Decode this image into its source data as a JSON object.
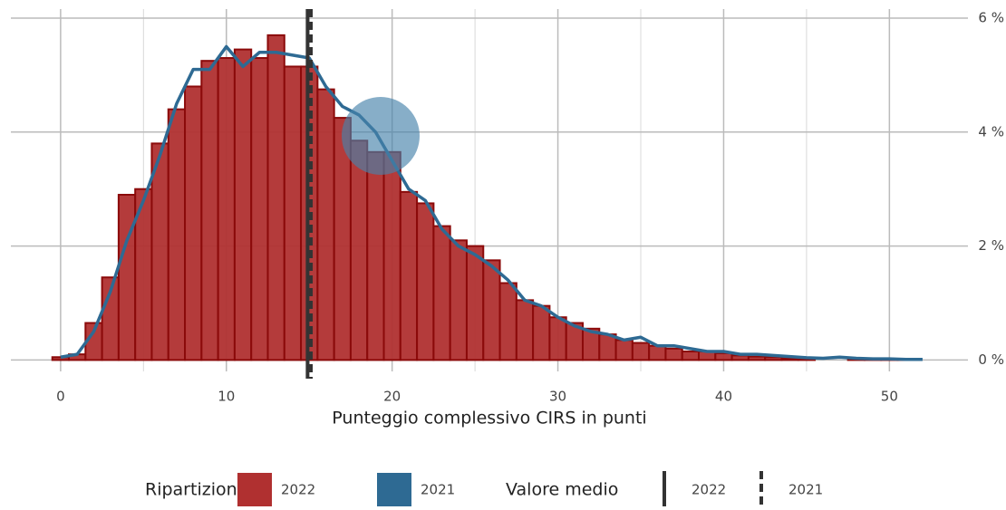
{
  "chart_data": {
    "type": "histogram",
    "xlabel": "Punteggio complessivo CIRS in punti",
    "bins": [
      -0.5,
      0.5,
      1.5,
      2.5,
      3.5,
      4.5,
      5.5,
      6.5,
      7.5,
      8.5,
      9.5,
      10.5,
      11.5,
      12.5,
      13.5,
      14.5,
      15.5,
      16.5,
      17.5,
      18.5,
      19.5,
      20.5,
      21.5,
      22.5,
      23.5,
      24.5,
      25.5,
      26.5,
      27.5,
      28.5,
      29.5,
      30.5,
      31.5,
      32.5,
      33.5,
      34.5,
      35.5,
      36.5,
      37.5,
      38.5,
      39.5,
      40.5,
      41.5,
      42.5,
      43.5,
      44.5,
      45.5,
      46.5,
      47.5,
      48.5,
      49.5,
      50.5,
      51.5,
      52.5
    ],
    "series": [
      {
        "name": "2022",
        "type": "histogram",
        "color": "#b03030",
        "edge_color": "#8b0a0a",
        "values": [
          0.05,
          0.1,
          0.65,
          1.45,
          2.9,
          3.0,
          3.8,
          4.4,
          4.8,
          5.25,
          5.3,
          5.45,
          5.3,
          5.7,
          5.15,
          5.15,
          4.75,
          4.25,
          3.85,
          3.65,
          3.65,
          2.95,
          2.75,
          2.35,
          2.1,
          2.0,
          1.75,
          1.35,
          1.05,
          0.95,
          0.75,
          0.65,
          0.55,
          0.45,
          0.35,
          0.3,
          0.25,
          0.2,
          0.15,
          0.15,
          0.12,
          0.08,
          0.06,
          0.05,
          0.03,
          0.02,
          0,
          0,
          0.01,
          0.01,
          0.01,
          0.01,
          0
        ]
      },
      {
        "name": "2021",
        "type": "line",
        "color": "#2e6a93",
        "x": [
          0,
          1,
          2,
          3,
          4,
          5,
          6,
          7,
          8,
          9,
          10,
          11,
          12,
          13,
          14,
          15,
          16,
          17,
          18,
          19,
          20,
          21,
          22,
          23,
          24,
          25,
          26,
          27,
          28,
          29,
          30,
          31,
          32,
          33,
          34,
          35,
          36,
          37,
          38,
          39,
          40,
          41,
          42,
          43,
          44,
          45,
          46,
          47,
          48,
          49,
          50,
          51,
          52
        ],
        "values": [
          0.05,
          0.1,
          0.5,
          1.2,
          2.1,
          2.8,
          3.6,
          4.5,
          5.1,
          5.1,
          5.5,
          5.15,
          5.4,
          5.4,
          5.35,
          5.3,
          4.8,
          4.45,
          4.3,
          4.0,
          3.5,
          3.0,
          2.8,
          2.3,
          2.0,
          1.85,
          1.65,
          1.4,
          1.05,
          0.95,
          0.75,
          0.6,
          0.5,
          0.45,
          0.35,
          0.4,
          0.25,
          0.25,
          0.2,
          0.15,
          0.15,
          0.1,
          0.1,
          0.08,
          0.06,
          0.04,
          0.03,
          0.05,
          0.03,
          0.02,
          0.02,
          0.01,
          0.01
        ]
      }
    ],
    "mean_lines": [
      {
        "name": "2022",
        "value": 14.9,
        "style": "solid",
        "color": "#333333"
      },
      {
        "name": "2021",
        "value": 15.1,
        "style": "dashed",
        "color": "#333333"
      }
    ],
    "xlim": [
      -3,
      54.3
    ],
    "xticks": [
      0,
      10,
      20,
      30,
      40,
      50
    ],
    "xminor": [
      5,
      15,
      25,
      35,
      45
    ],
    "ylim": [
      -0.2,
      6
    ],
    "yticks": [
      {
        "value": 0,
        "label": "0 %"
      },
      {
        "value": 2,
        "label": "2 %"
      },
      {
        "value": 4,
        "label": "4 %"
      },
      {
        "value": 6,
        "label": "6 %"
      }
    ],
    "grid": true,
    "legend_fill_title": "Ripartizione",
    "legend_line_title": "Valore medio"
  }
}
